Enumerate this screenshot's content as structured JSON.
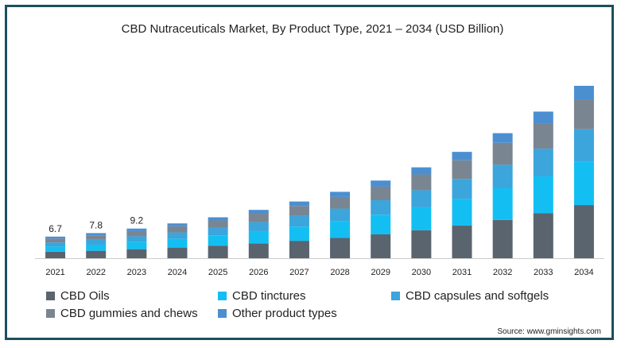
{
  "chart_data": {
    "type": "bar",
    "stacked": true,
    "title": "CBD Nutraceuticals Market, By Product Type, 2021 – 2034 (USD Billion)",
    "categories": [
      "2021",
      "2022",
      "2023",
      "2024",
      "2025",
      "2026",
      "2027",
      "2028",
      "2029",
      "2030",
      "2031",
      "2032",
      "2033",
      "2034"
    ],
    "data_labels": [
      "6.7",
      "7.8",
      "9.2",
      "",
      "",
      "",
      "",
      "",
      "",
      "",
      "",
      "",
      "",
      ""
    ],
    "totals": [
      6.7,
      7.8,
      9.2,
      10.8,
      12.7,
      15.0,
      17.6,
      20.6,
      24.1,
      28.2,
      33.0,
      38.8,
      45.5,
      53.5
    ],
    "series": [
      {
        "name": "CBD Oils",
        "color": "#59646f",
        "values": [
          2.0,
          2.3,
          2.8,
          3.3,
          3.9,
          4.6,
          5.4,
          6.3,
          7.4,
          8.7,
          10.1,
          11.9,
          14.0,
          16.5
        ]
      },
      {
        "name": "CBD tinctures",
        "color": "#13bff2",
        "values": [
          1.6,
          1.9,
          2.3,
          2.7,
          3.2,
          3.8,
          4.4,
          5.2,
          6.1,
          7.1,
          8.3,
          9.8,
          11.4,
          13.4
        ]
      },
      {
        "name": "CBD capsules and softgels",
        "color": "#3ba5dc",
        "values": [
          1.3,
          1.5,
          1.7,
          2.0,
          2.4,
          2.8,
          3.3,
          3.9,
          4.5,
          5.3,
          6.2,
          7.3,
          8.6,
          10.1
        ]
      },
      {
        "name": "CBD gummies and chews",
        "color": "#7a8592",
        "values": [
          1.2,
          1.4,
          1.6,
          1.9,
          2.2,
          2.6,
          3.1,
          3.6,
          4.2,
          4.9,
          5.8,
          6.8,
          7.9,
          9.3
        ]
      },
      {
        "name": "Other product types",
        "color": "#4b8fd1",
        "values": [
          0.6,
          0.7,
          0.8,
          0.9,
          1.0,
          1.2,
          1.4,
          1.6,
          1.9,
          2.2,
          2.6,
          3.0,
          3.6,
          4.2
        ]
      }
    ],
    "ylim": [
      0,
      56
    ],
    "grid": false,
    "legend_position": "bottom"
  },
  "source": "Source: www.gminsights.com"
}
